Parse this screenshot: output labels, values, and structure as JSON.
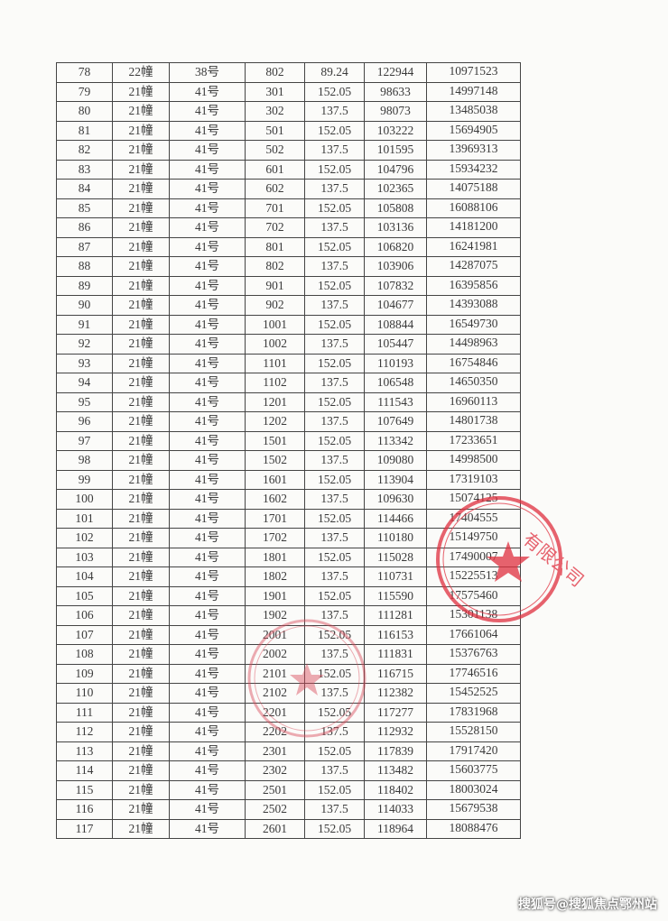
{
  "document": {
    "rows": [
      [
        "78",
        "22幢",
        "38号",
        "802",
        "89.24",
        "122944",
        "10971523"
      ],
      [
        "79",
        "21幢",
        "41号",
        "301",
        "152.05",
        "98633",
        "14997148"
      ],
      [
        "80",
        "21幢",
        "41号",
        "302",
        "137.5",
        "98073",
        "13485038"
      ],
      [
        "81",
        "21幢",
        "41号",
        "501",
        "152.05",
        "103222",
        "15694905"
      ],
      [
        "82",
        "21幢",
        "41号",
        "502",
        "137.5",
        "101595",
        "13969313"
      ],
      [
        "83",
        "21幢",
        "41号",
        "601",
        "152.05",
        "104796",
        "15934232"
      ],
      [
        "84",
        "21幢",
        "41号",
        "602",
        "137.5",
        "102365",
        "14075188"
      ],
      [
        "85",
        "21幢",
        "41号",
        "701",
        "152.05",
        "105808",
        "16088106"
      ],
      [
        "86",
        "21幢",
        "41号",
        "702",
        "137.5",
        "103136",
        "14181200"
      ],
      [
        "87",
        "21幢",
        "41号",
        "801",
        "152.05",
        "106820",
        "16241981"
      ],
      [
        "88",
        "21幢",
        "41号",
        "802",
        "137.5",
        "103906",
        "14287075"
      ],
      [
        "89",
        "21幢",
        "41号",
        "901",
        "152.05",
        "107832",
        "16395856"
      ],
      [
        "90",
        "21幢",
        "41号",
        "902",
        "137.5",
        "104677",
        "14393088"
      ],
      [
        "91",
        "21幢",
        "41号",
        "1001",
        "152.05",
        "108844",
        "16549730"
      ],
      [
        "92",
        "21幢",
        "41号",
        "1002",
        "137.5",
        "105447",
        "14498963"
      ],
      [
        "93",
        "21幢",
        "41号",
        "1101",
        "152.05",
        "110193",
        "16754846"
      ],
      [
        "94",
        "21幢",
        "41号",
        "1102",
        "137.5",
        "106548",
        "14650350"
      ],
      [
        "95",
        "21幢",
        "41号",
        "1201",
        "152.05",
        "111543",
        "16960113"
      ],
      [
        "96",
        "21幢",
        "41号",
        "1202",
        "137.5",
        "107649",
        "14801738"
      ],
      [
        "97",
        "21幢",
        "41号",
        "1501",
        "152.05",
        "113342",
        "17233651"
      ],
      [
        "98",
        "21幢",
        "41号",
        "1502",
        "137.5",
        "109080",
        "14998500"
      ],
      [
        "99",
        "21幢",
        "41号",
        "1601",
        "152.05",
        "113904",
        "17319103"
      ],
      [
        "100",
        "21幢",
        "41号",
        "1602",
        "137.5",
        "109630",
        "15074125"
      ],
      [
        "101",
        "21幢",
        "41号",
        "1701",
        "152.05",
        "114466",
        "17404555"
      ],
      [
        "102",
        "21幢",
        "41号",
        "1702",
        "137.5",
        "110180",
        "15149750"
      ],
      [
        "103",
        "21幢",
        "41号",
        "1801",
        "152.05",
        "115028",
        "17490007"
      ],
      [
        "104",
        "21幢",
        "41号",
        "1802",
        "137.5",
        "110731",
        "15225513"
      ],
      [
        "105",
        "21幢",
        "41号",
        "1901",
        "152.05",
        "115590",
        "17575460"
      ],
      [
        "106",
        "21幢",
        "41号",
        "1902",
        "137.5",
        "111281",
        "15301138"
      ],
      [
        "107",
        "21幢",
        "41号",
        "2001",
        "152.05",
        "116153",
        "17661064"
      ],
      [
        "108",
        "21幢",
        "41号",
        "2002",
        "137.5",
        "111831",
        "15376763"
      ],
      [
        "109",
        "21幢",
        "41号",
        "2101",
        "152.05",
        "116715",
        "17746516"
      ],
      [
        "110",
        "21幢",
        "41号",
        "2102",
        "137.5",
        "112382",
        "15452525"
      ],
      [
        "111",
        "21幢",
        "41号",
        "2201",
        "152.05",
        "117277",
        "17831968"
      ],
      [
        "112",
        "21幢",
        "41号",
        "2202",
        "137.5",
        "112932",
        "15528150"
      ],
      [
        "113",
        "21幢",
        "41号",
        "2301",
        "152.05",
        "117839",
        "17917420"
      ],
      [
        "114",
        "21幢",
        "41号",
        "2302",
        "137.5",
        "113482",
        "15603775"
      ],
      [
        "115",
        "21幢",
        "41号",
        "2501",
        "152.05",
        "118402",
        "18003024"
      ],
      [
        "116",
        "21幢",
        "41号",
        "2502",
        "137.5",
        "114033",
        "15679538"
      ],
      [
        "117",
        "21幢",
        "41号",
        "2601",
        "152.05",
        "118964",
        "18088476"
      ]
    ]
  },
  "seals": {
    "color": "#e0303f",
    "text_partial": "业有限公司"
  },
  "watermark": "搜狐号@搜狐焦点鄂州站"
}
